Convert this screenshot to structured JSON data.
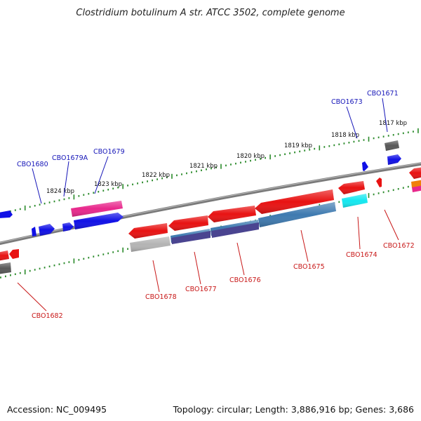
{
  "title": "Clostridium botulinum A str. ATCC 3502, complete genome",
  "footer": {
    "accession": "Accession: NC_009495",
    "topology": "Topology: circular; Length: 3,886,916 bp; Genes: 3,686"
  },
  "colors": {
    "red": "#e81212",
    "blue": "#1010e6",
    "pink": "#e8288c",
    "steel": "#3e7ab0",
    "purple": "#4a4490",
    "gray": "#9a9a9a",
    "dark": "#585858",
    "cyan": "#14e8f0",
    "orange": "#f0800a",
    "backbone": "#7a7a7a",
    "tick": "#2a8a2a",
    "label_top": "#1515b8",
    "label_bottom": "#c81818"
  },
  "scale_labels": [
    "1824 kbp",
    "1823 kbp",
    "1822 kbp",
    "1821 kbp",
    "1820 kbp",
    "1819 kbp",
    "1818 kbp",
    "1817 kbp"
  ],
  "labels_top": [
    "CBO1680",
    "CBO1679A",
    "CBO1679",
    "CBO1673",
    "CBO1671"
  ],
  "labels_bottom": [
    "CBO1682",
    "CBO1678",
    "CBO1677",
    "CBO1676",
    "CBO1675",
    "CBO1674",
    "CBO1672"
  ]
}
